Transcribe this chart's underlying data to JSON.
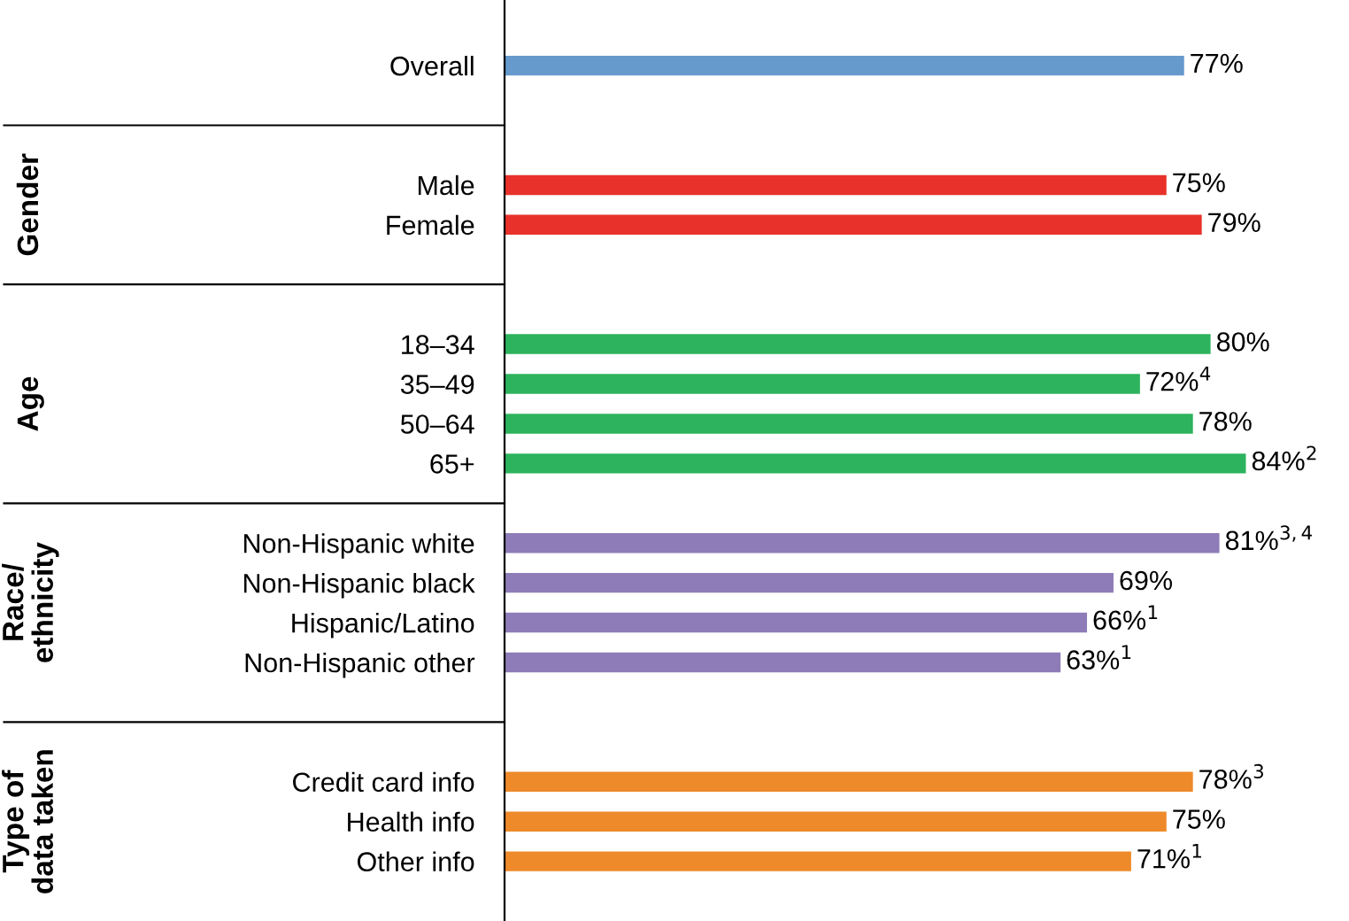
{
  "chart_data": {
    "type": "bar",
    "orientation": "horizontal",
    "categories": [
      "Overall",
      null,
      null,
      "Male",
      "Female",
      null,
      null,
      "18–34",
      "35–49",
      "50–64",
      "65+",
      null,
      "Non-Hispanic white",
      "Non-Hispanic black",
      "Hispanic/Latino",
      "Non-Hispanic other",
      null,
      null,
      "Credit card info",
      "Health info",
      "Other info"
    ],
    "values": [
      77,
      null,
      null,
      75,
      79,
      null,
      null,
      80,
      72,
      78,
      84,
      null,
      81,
      69,
      66,
      63,
      null,
      null,
      78,
      75,
      71
    ],
    "value_labels": [
      "77%",
      null,
      null,
      "75%",
      "79%",
      null,
      null,
      "80%",
      "72%$^{4}$",
      "78%",
      "84%$^{2}$",
      null,
      "81%$^{3,4}$",
      "69%",
      "66%$^{1}$",
      "63%$^{1}$",
      null,
      null,
      "78%$^{3}$",
      "75%",
      "71%$^{1}$"
    ],
    "colors": [
      "#6699cc",
      null,
      null,
      "#e8312a",
      "#e8312a",
      null,
      null,
      "#2db35d",
      "#2db35d",
      "#2db35d",
      "#2db35d",
      null,
      "#8e7cb8",
      "#8e7cb8",
      "#8e7cb8",
      "#8e7cb8",
      null,
      null,
      "#ee8a2a",
      "#ee8a2a",
      "#ee8a2a"
    ],
    "annotations": [
      "Gender",
      "Age",
      "Race/\nethnicity",
      "Type of\ndata taken"
    ],
    "tick_labels": "y",
    "grid": false
  }
}
